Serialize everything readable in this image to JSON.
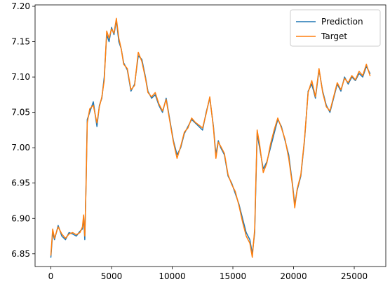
{
  "chart_data": {
    "type": "line",
    "title": "",
    "xlabel": "",
    "ylabel": "",
    "xlim": [
      -1300,
      27600
    ],
    "ylim": [
      6.832,
      7.202
    ],
    "x_ticks": [
      0,
      5000,
      10000,
      15000,
      20000,
      25000
    ],
    "x_tick_labels": [
      "0",
      "5000",
      "10000",
      "15000",
      "20000",
      "25000"
    ],
    "y_ticks": [
      6.85,
      6.9,
      6.95,
      7.0,
      7.05,
      7.1,
      7.15,
      7.2
    ],
    "y_tick_labels": [
      "6.85",
      "6.90",
      "6.95",
      "7.00",
      "7.05",
      "7.10",
      "7.15",
      "7.20"
    ],
    "grid": false,
    "legend_position": "top-right",
    "series": [
      {
        "name": "Prediction",
        "color": "#1f77b4",
        "x": [
          0,
          150,
          300,
          600,
          900,
          1200,
          1500,
          1800,
          2100,
          2400,
          2600,
          2700,
          2800,
          2900,
          3000,
          3200,
          3500,
          3800,
          4000,
          4200,
          4400,
          4600,
          4800,
          5000,
          5200,
          5400,
          5600,
          5800,
          6000,
          6300,
          6600,
          6900,
          7200,
          7500,
          7800,
          8000,
          8300,
          8600,
          8900,
          9200,
          9500,
          9800,
          10100,
          10400,
          10700,
          11000,
          11300,
          11600,
          11900,
          12200,
          12500,
          12800,
          13100,
          13400,
          13600,
          13800,
          14000,
          14300,
          14600,
          14900,
          15200,
          15500,
          15800,
          16100,
          16400,
          16600,
          16800,
          17000,
          17200,
          17500,
          17800,
          18100,
          18400,
          18700,
          19000,
          19300,
          19600,
          19900,
          20100,
          20300,
          20600,
          20900,
          21200,
          21500,
          21800,
          22100,
          22400,
          22700,
          23000,
          23300,
          23600,
          23900,
          24200,
          24500,
          24800,
          25100,
          25400,
          25700,
          26000,
          26300
        ],
        "values": [
          6.845,
          6.88,
          6.87,
          6.89,
          6.875,
          6.87,
          6.88,
          6.878,
          6.875,
          6.882,
          6.885,
          6.9,
          6.87,
          6.95,
          7.04,
          7.05,
          7.065,
          7.03,
          7.06,
          7.07,
          7.1,
          7.16,
          7.15,
          7.17,
          7.16,
          7.18,
          7.15,
          7.14,
          7.12,
          7.11,
          7.08,
          7.09,
          7.13,
          7.125,
          7.1,
          7.08,
          7.07,
          7.075,
          7.06,
          7.05,
          7.07,
          7.04,
          7.01,
          6.99,
          7.0,
          7.02,
          7.03,
          7.04,
          7.035,
          7.03,
          7.025,
          7.05,
          7.07,
          7.03,
          6.99,
          7.01,
          7.0,
          6.99,
          6.96,
          6.95,
          6.935,
          6.92,
          6.9,
          6.88,
          6.87,
          6.85,
          6.88,
          7.02,
          7.0,
          6.97,
          6.98,
          7.0,
          7.02,
          7.04,
          7.03,
          7.01,
          6.99,
          6.95,
          6.92,
          6.94,
          6.96,
          7.01,
          7.08,
          7.09,
          7.07,
          7.11,
          7.08,
          7.06,
          7.05,
          7.07,
          7.09,
          7.08,
          7.1,
          7.09,
          7.1,
          7.095,
          7.105,
          7.1,
          7.115,
          7.105
        ]
      },
      {
        "name": "Target",
        "color": "#ff7f0e",
        "x": [
          0,
          150,
          300,
          600,
          900,
          1200,
          1500,
          1800,
          2100,
          2400,
          2600,
          2700,
          2800,
          2900,
          3000,
          3200,
          3500,
          3800,
          4000,
          4200,
          4400,
          4600,
          4800,
          5000,
          5200,
          5400,
          5600,
          5800,
          6000,
          6300,
          6600,
          6900,
          7200,
          7500,
          7800,
          8000,
          8300,
          8600,
          8900,
          9200,
          9500,
          9800,
          10100,
          10400,
          10700,
          11000,
          11300,
          11600,
          11900,
          12200,
          12500,
          12800,
          13100,
          13400,
          13600,
          13800,
          14000,
          14300,
          14600,
          14900,
          15200,
          15500,
          15800,
          16100,
          16400,
          16600,
          16800,
          17000,
          17200,
          17500,
          17800,
          18100,
          18400,
          18700,
          19000,
          19300,
          19600,
          19900,
          20100,
          20300,
          20600,
          20900,
          21200,
          21500,
          21800,
          22100,
          22400,
          22700,
          23000,
          23300,
          23600,
          23900,
          24200,
          24500,
          24800,
          25100,
          25400,
          25700,
          26000,
          26300
        ],
        "values": [
          6.848,
          6.885,
          6.872,
          6.888,
          6.878,
          6.872,
          6.878,
          6.88,
          6.877,
          6.88,
          6.888,
          6.905,
          6.875,
          6.945,
          7.035,
          7.055,
          7.06,
          7.035,
          7.058,
          7.072,
          7.095,
          7.165,
          7.155,
          7.168,
          7.162,
          7.183,
          7.155,
          7.14,
          7.118,
          7.112,
          7.082,
          7.088,
          7.135,
          7.122,
          7.098,
          7.078,
          7.072,
          7.078,
          7.062,
          7.052,
          7.068,
          7.038,
          7.008,
          6.985,
          7.002,
          7.022,
          7.028,
          7.042,
          7.036,
          7.032,
          7.028,
          7.048,
          7.072,
          7.028,
          6.985,
          7.008,
          7.002,
          6.992,
          6.962,
          6.948,
          6.938,
          6.918,
          6.895,
          6.875,
          6.865,
          6.845,
          6.885,
          7.025,
          7.005,
          6.965,
          6.978,
          7.005,
          7.025,
          7.042,
          7.028,
          7.012,
          6.985,
          6.948,
          6.915,
          6.942,
          6.962,
          7.012,
          7.078,
          7.095,
          7.072,
          7.112,
          7.078,
          7.058,
          7.052,
          7.072,
          7.092,
          7.082,
          7.098,
          7.092,
          7.102,
          7.096,
          7.108,
          7.102,
          7.118,
          7.102
        ]
      }
    ]
  }
}
